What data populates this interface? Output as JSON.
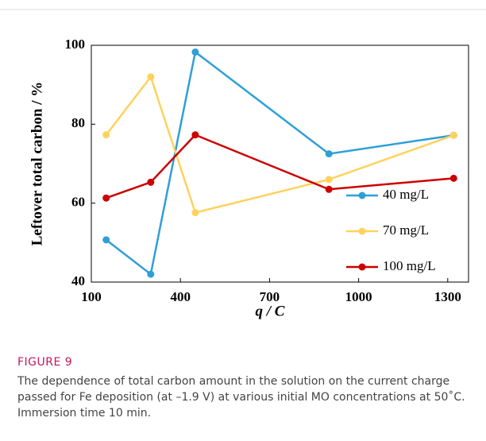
{
  "chart_data": {
    "type": "line",
    "figure_label": "FIGURE 9",
    "caption": "The dependence of total carbon amount in the solution on the current charge passed for Fe deposition (at –1.9 V) at various initial MO concentrations at 50˚C. Immersion time 10 min.",
    "xlabel": "q / C",
    "ylabel": "Leftover total carbon / %",
    "x": [
      150,
      300,
      450,
      900,
      1320
    ],
    "series": [
      {
        "name": "40 mg/L",
        "color": "#2e9fd8",
        "values": [
          50.7,
          42,
          98.3,
          72.5,
          77.2
        ]
      },
      {
        "name": "70 mg/L",
        "color": "#ffd25e",
        "values": [
          77.3,
          92,
          57.6,
          66,
          77.2
        ]
      },
      {
        "name": "100 mg/L",
        "color": "#cc0000",
        "values": [
          61.3,
          65.3,
          77.3,
          63.5,
          66.3
        ]
      }
    ],
    "xlim": [
      100,
      1370
    ],
    "xticks": [
      100,
      400,
      700,
      1000,
      1300
    ],
    "ylim": [
      40,
      100
    ],
    "yticks": [
      40,
      60,
      80,
      100
    ],
    "legend": "right"
  }
}
